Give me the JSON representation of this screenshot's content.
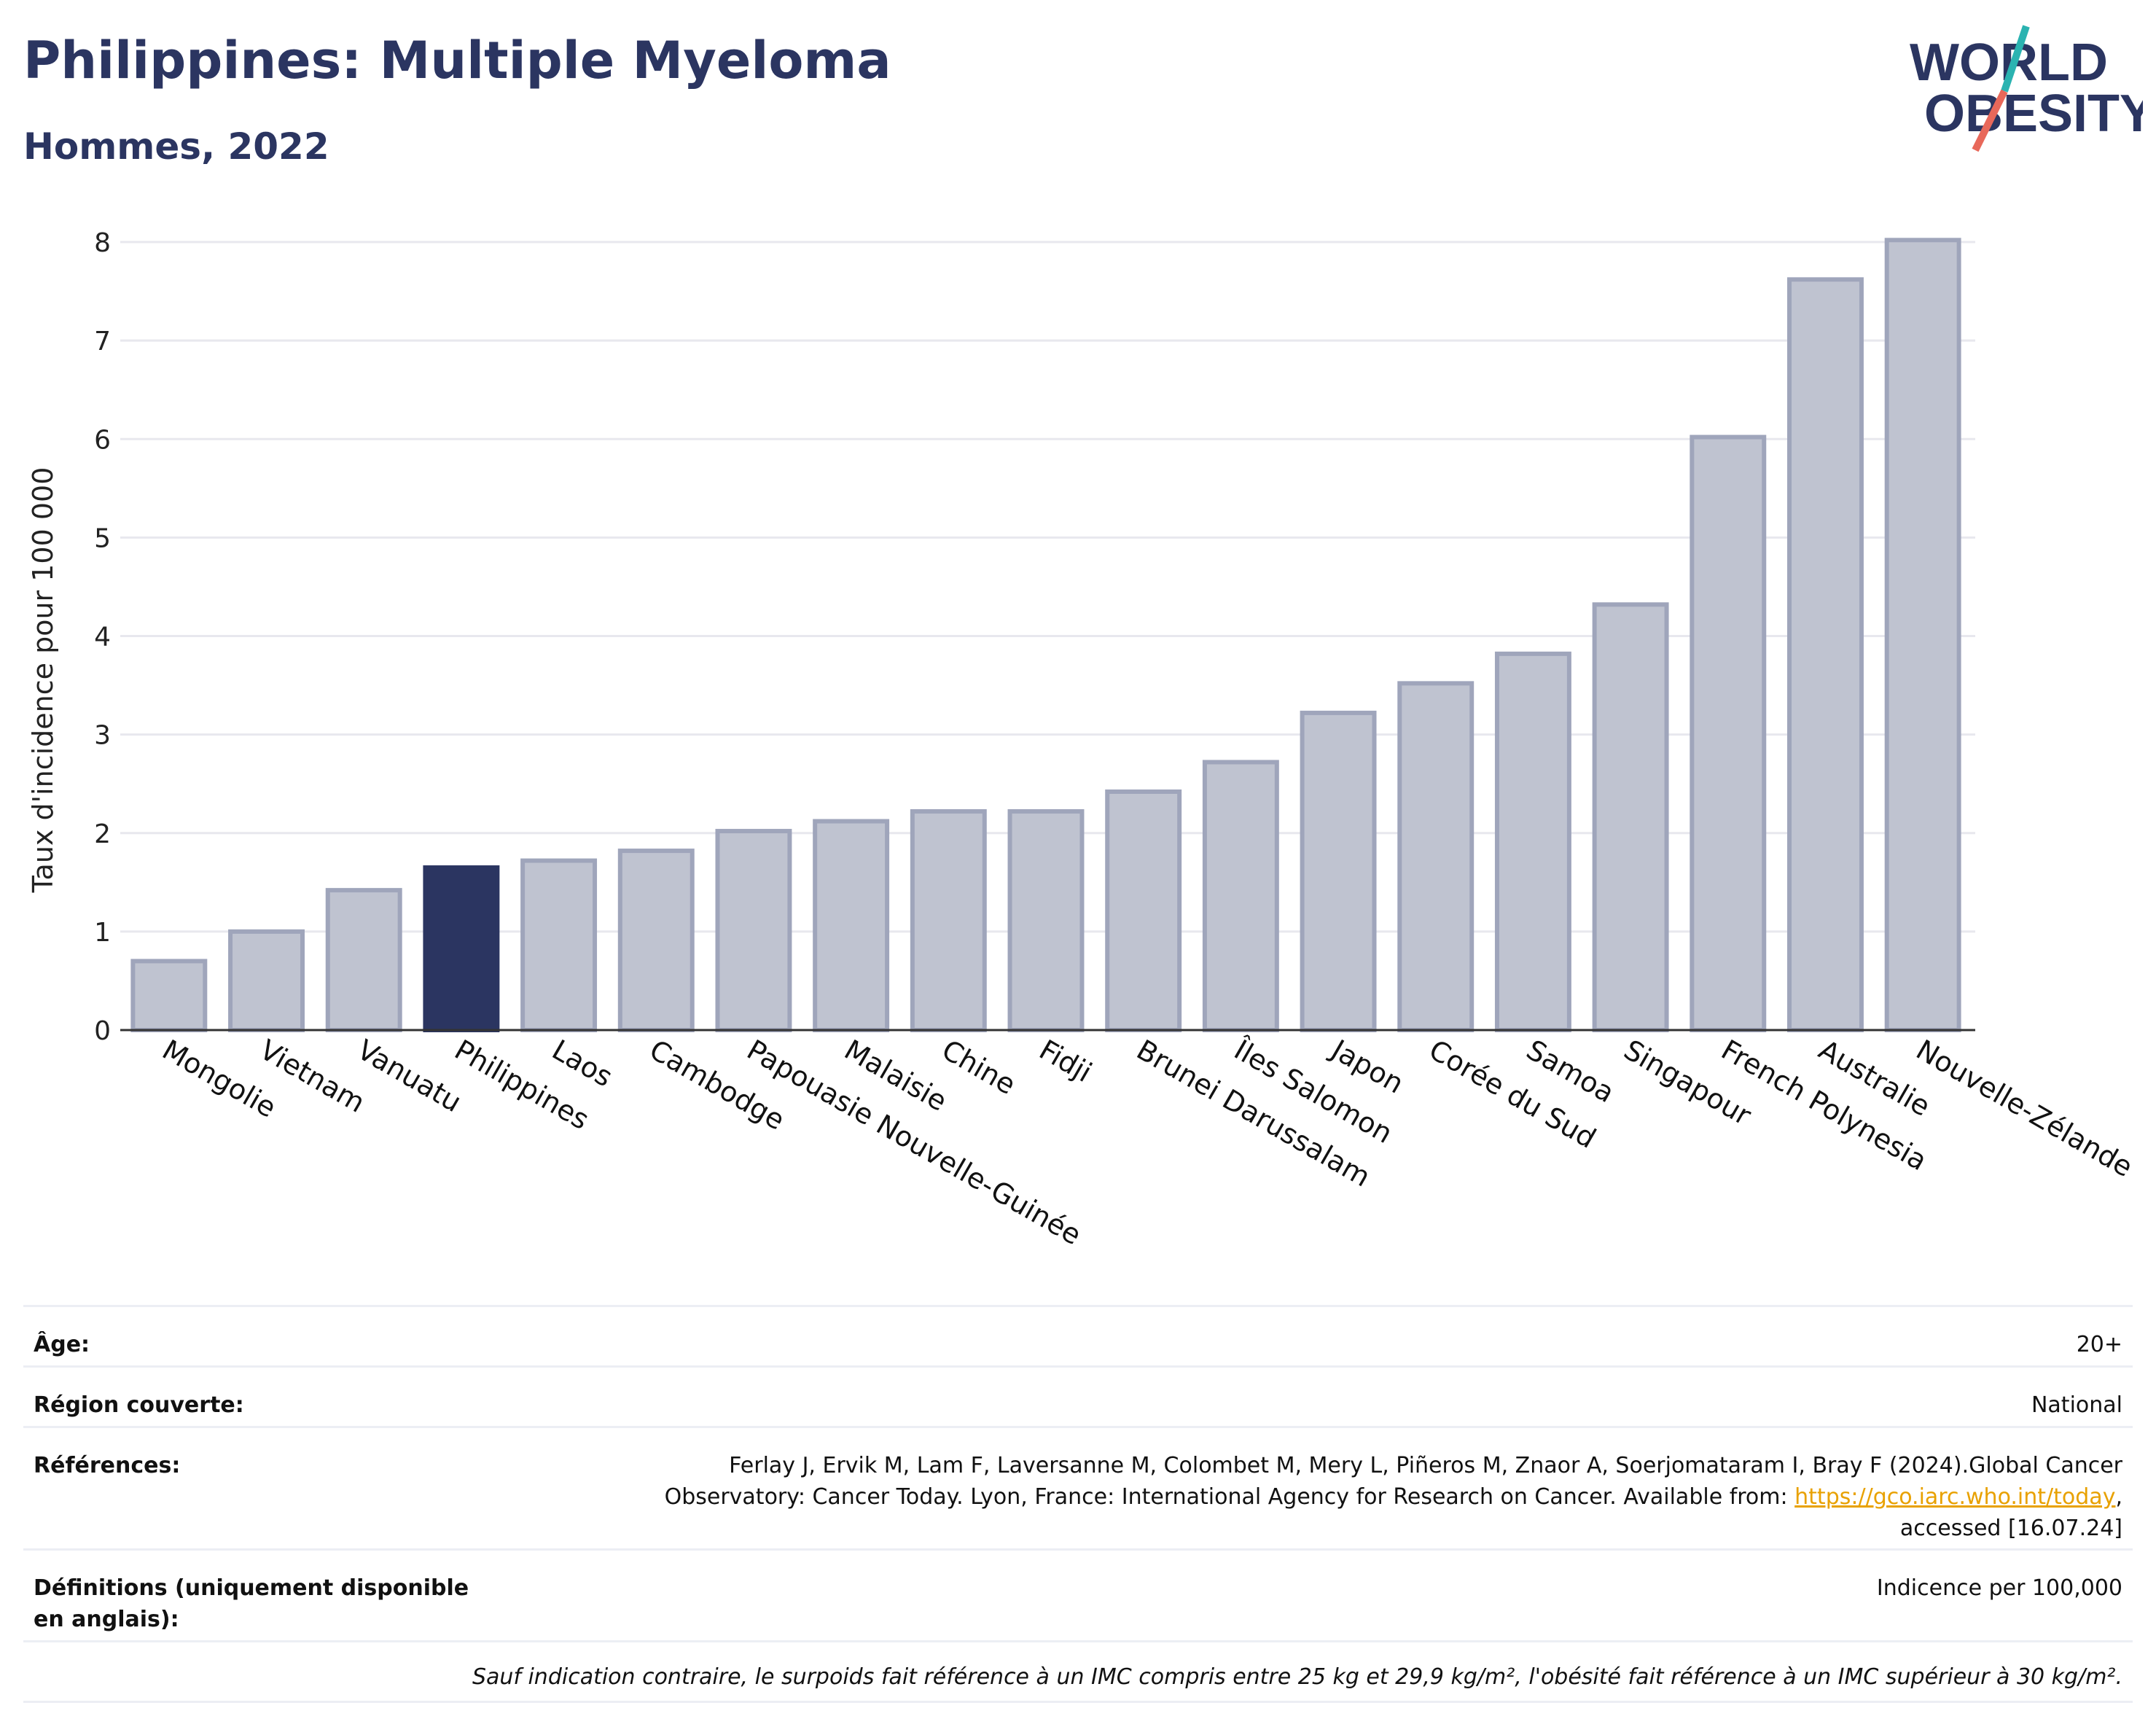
{
  "header": {
    "title": "Philippines: Multiple Myeloma",
    "subtitle": "Hommes, 2022"
  },
  "logo": {
    "line1": "WORLD",
    "line2": "OBESITY"
  },
  "colors": {
    "highlight": "#2b3561",
    "bar_fill": "#bfc3d0",
    "bar_stroke": "#9fa5bb",
    "grid": "#e8e8ee",
    "title": "#2b3561",
    "link": "#e8a100"
  },
  "chart_data": {
    "type": "bar",
    "title": "Philippines: Multiple Myeloma",
    "subtitle": "Hommes, 2022",
    "ylabel": "Taux d'incidence pour 100 000",
    "xlabel": "",
    "ylim": [
      0,
      8
    ],
    "yticks": [
      0,
      1,
      2,
      3,
      4,
      5,
      6,
      7,
      8
    ],
    "grid": true,
    "highlight": "Philippines",
    "categories": [
      "Mongolie",
      "Vietnam",
      "Vanuatu",
      "Philippines",
      "Laos",
      "Cambodge",
      "Papouasie Nouvelle-Guinée",
      "Malaisie",
      "Chine",
      "Fidji",
      "Brunei Darussalam",
      "Îles Salomon",
      "Japon",
      "Corée du Sud",
      "Samoa",
      "Singapour",
      "French Polynesia",
      "Australie",
      "Nouvelle-Zélande"
    ],
    "values": [
      0.7,
      1.0,
      1.42,
      1.65,
      1.72,
      1.82,
      2.02,
      2.12,
      2.22,
      2.22,
      2.42,
      2.72,
      3.22,
      3.52,
      3.82,
      4.32,
      6.02,
      7.62,
      8.02
    ]
  },
  "info": {
    "age_label": "Âge:",
    "age_value": "20+",
    "region_label": "Région couverte:",
    "region_value": "National",
    "refs_label": "Références:",
    "refs_text_1": "Ferlay J, Ervik M, Lam F, Laversanne M, Colombet M, Mery L, Piñeros M, Znaor A, Soerjomataram I, Bray F (2024).Global Cancer",
    "refs_text_2": "Observatory: Cancer Today. Lyon, France: International Agency for Research on Cancer. Available from: ",
    "refs_link": "https://gco.iarc.who.int/today",
    "refs_text_3": ",",
    "refs_text_4": "accessed [16.07.24]",
    "defs_label": "Définitions (uniquement disponible en anglais):",
    "defs_value": "Indicence per 100,000",
    "note": "Sauf indication contraire, le surpoids fait référence à un IMC compris entre 25 kg et 29,9 kg/m², l'obésité fait référence à un IMC supérieur à 30 kg/m²."
  }
}
